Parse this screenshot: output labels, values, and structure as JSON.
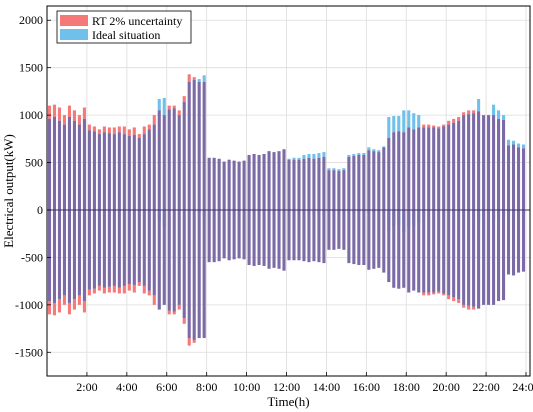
{
  "chart_data": {
    "type": "bar",
    "xlabel": "Time(h)",
    "ylabel": "Electrical output(kW)",
    "ylim": [
      -1750,
      2150
    ],
    "xlim": [
      0,
      24.2
    ],
    "y_ticks": [
      2000,
      1500,
      1000,
      500,
      0,
      -500,
      -1000,
      -1500
    ],
    "y_tick_labels": [
      "2000",
      "1500",
      "1000",
      "500",
      "0",
      "-500",
      "-1000",
      "-1500"
    ],
    "x_ticks": [
      2,
      4,
      6,
      8,
      10,
      12,
      14,
      16,
      18,
      20,
      22,
      24
    ],
    "x_tick_labels": [
      "2:00",
      "4:00",
      "6:00",
      "8:00",
      "10:00",
      "12:00",
      "14:00",
      "16:00",
      "18:00",
      "20:00",
      "22:00",
      "24:00"
    ],
    "grid": true,
    "legend_position": "top-left",
    "bar_interval_h": 0.25,
    "purple_color": "#7b6aa6",
    "series": [
      {
        "name": "RT 2% uncertainty",
        "color": "#f47a7a",
        "values": [
          1100,
          1110,
          1080,
          1000,
          1100,
          1050,
          1000,
          1080,
          900,
          880,
          850,
          880,
          870,
          870,
          880,
          880,
          850,
          870,
          800,
          880,
          900,
          1000,
          1050,
          1000,
          1100,
          1100,
          1050,
          1200,
          1430,
          1400,
          1350,
          1350,
          550,
          550,
          540,
          510,
          530,
          520,
          510,
          520,
          580,
          590,
          580,
          590,
          620,
          610,
          620,
          640,
          530,
          530,
          530,
          540,
          550,
          540,
          550,
          560,
          420,
          420,
          410,
          420,
          560,
          570,
          580,
          580,
          630,
          620,
          610,
          660,
          760,
          820,
          830,
          820,
          870,
          850,
          870,
          900,
          900,
          890,
          880,
          900,
          940,
          960,
          980,
          1030,
          1050,
          1050,
          1040,
          1000,
          1000,
          1000,
          960,
          950,
          680,
          690,
          660,
          650
        ]
      },
      {
        "name": "Ideal situation",
        "color": "#70c0ec",
        "values": [
          960,
          980,
          940,
          900,
          980,
          940,
          900,
          960,
          840,
          830,
          800,
          820,
          810,
          800,
          820,
          800,
          780,
          790,
          760,
          800,
          850,
          900,
          1170,
          1180,
          1060,
          1070,
          1000,
          1140,
          1350,
          1370,
          1380,
          1420,
          550,
          550,
          540,
          510,
          530,
          520,
          510,
          520,
          580,
          590,
          580,
          590,
          620,
          610,
          620,
          640,
          540,
          550,
          550,
          580,
          590,
          590,
          600,
          610,
          440,
          440,
          430,
          440,
          580,
          590,
          600,
          600,
          660,
          640,
          630,
          670,
          980,
          990,
          990,
          1050,
          1050,
          1020,
          1000,
          870,
          870,
          870,
          860,
          880,
          900,
          920,
          940,
          1000,
          1010,
          1020,
          1170,
          1000,
          1000,
          1110,
          1050,
          1000,
          740,
          730,
          700,
          690
        ]
      }
    ]
  }
}
